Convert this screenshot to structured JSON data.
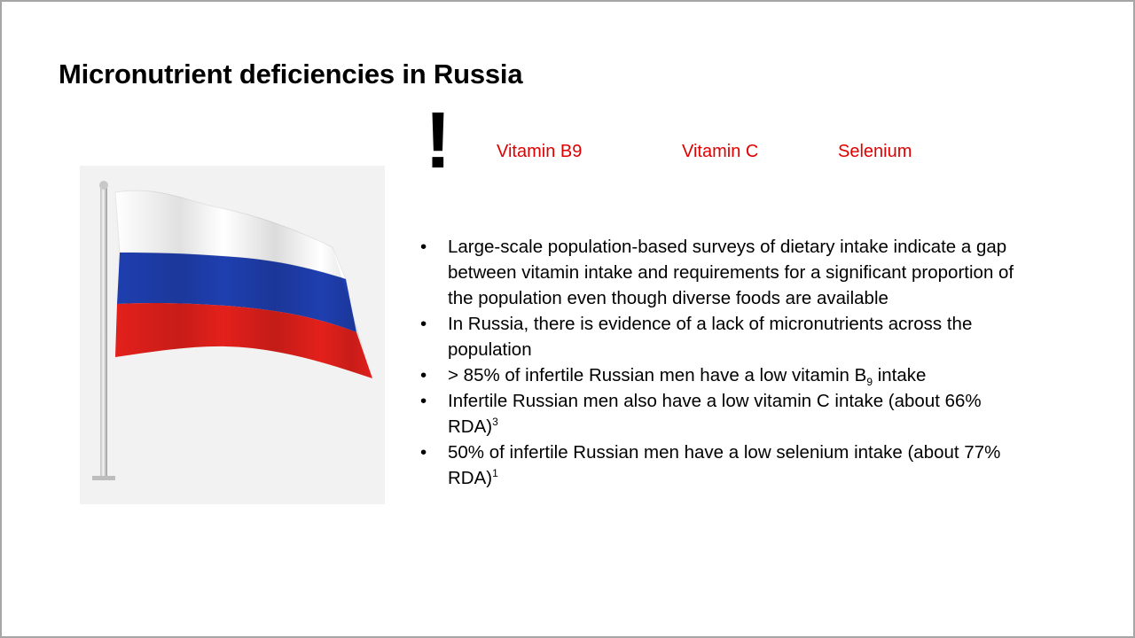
{
  "slide": {
    "title": "Micronutrient deficiencies in Russia",
    "alert_symbol": "!",
    "nutrients": [
      "Vitamin B9",
      "Vitamin C",
      "Selenium"
    ],
    "bullets": [
      {
        "text": "Large-scale population-based surveys of dietary intake indicate a gap between vitamin intake and requirements for a significant proportion of the population even though diverse foods are available"
      },
      {
        "text": "In Russia, there is evidence of a lack of micronutrients across the population"
      },
      {
        "pre": "> 85% of infertile Russian men have a low vitamin B",
        "sub": "9",
        "post": " intake"
      },
      {
        "pre": "Infertile Russian men also have a low vitamin C intake (about 66% RDA)",
        "sup": "3"
      },
      {
        "pre": "50% of infertile Russian men have a low selenium intake (about 77% RDA)",
        "sup": "1"
      }
    ],
    "colors": {
      "accent_red": "#e00000",
      "flag_white": "#ffffff",
      "flag_blue": "#1f3fb0",
      "flag_red": "#e3201b",
      "flag_bg": "#f2f2f2"
    }
  }
}
